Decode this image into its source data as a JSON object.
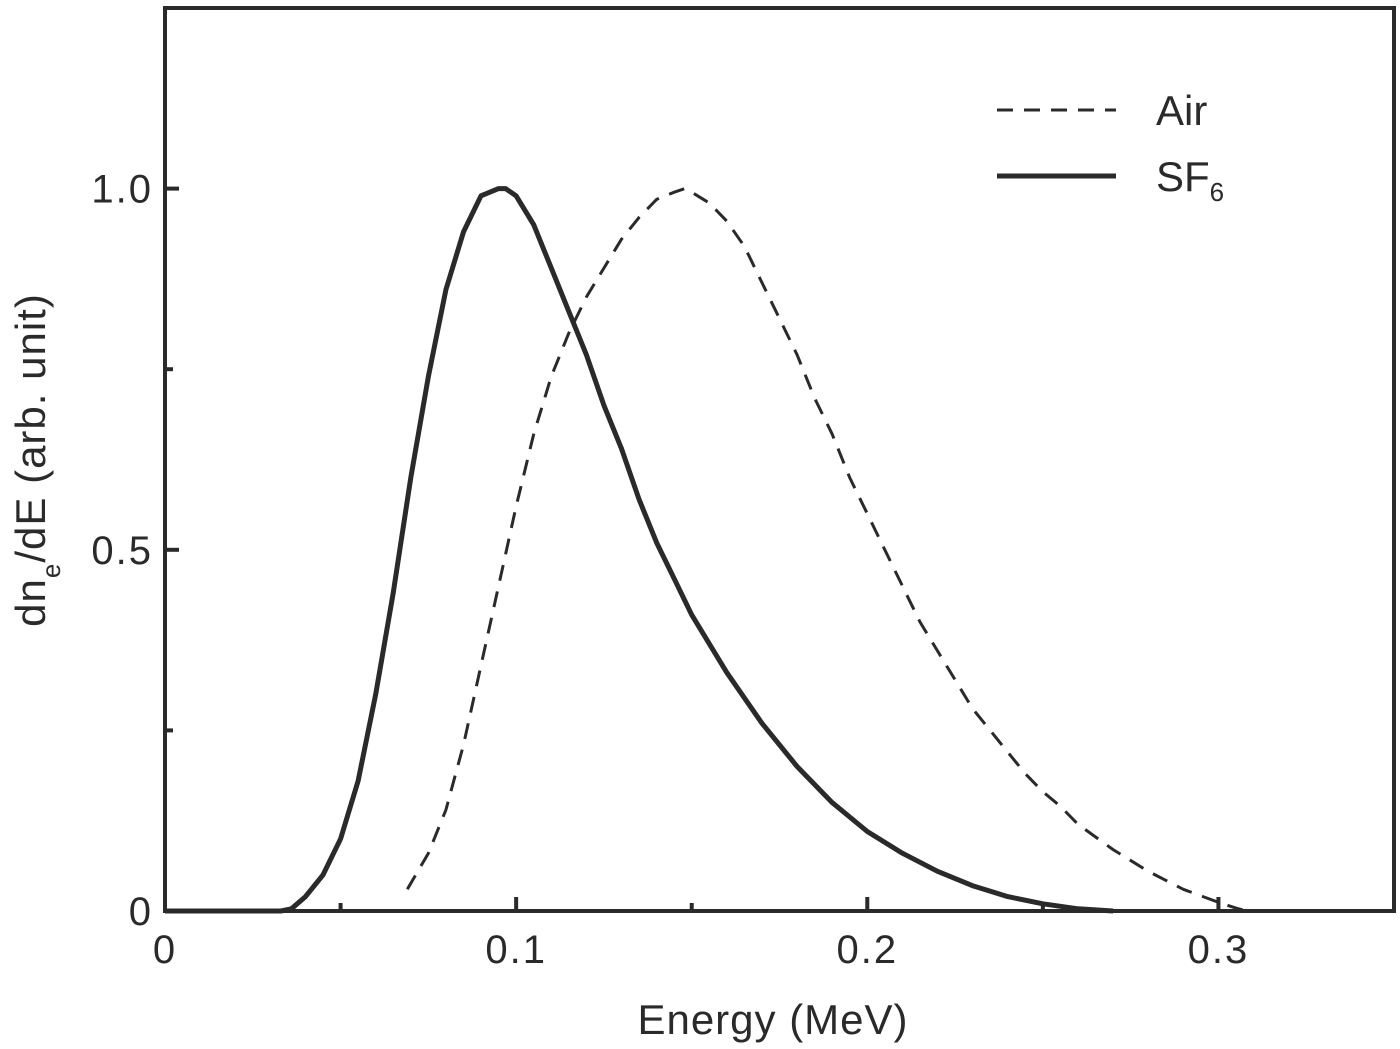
{
  "chart_data": {
    "type": "line",
    "title": "",
    "xlabel": "Energy (MeV)",
    "ylabel": {
      "parts": [
        {
          "text": "dn",
          "style": "normal"
        },
        {
          "text": "e",
          "style": "sub"
        },
        {
          "text": "/dE (arb. unit)",
          "style": "normal"
        }
      ]
    },
    "xlim": [
      0,
      0.35
    ],
    "ylim": [
      0,
      1.25
    ],
    "x_ticks": [
      {
        "value": 0,
        "label": "0"
      },
      {
        "value": 0.1,
        "label": "0.1"
      },
      {
        "value": 0.2,
        "label": "0.2"
      },
      {
        "value": 0.3,
        "label": "0.3"
      }
    ],
    "x_minor_ticks": [
      0.05,
      0.15,
      0.25
    ],
    "y_ticks": [
      {
        "value": 0,
        "label": "0"
      },
      {
        "value": 0.5,
        "label": "0.5"
      },
      {
        "value": 1.0,
        "label": "1.0"
      }
    ],
    "y_minor_ticks": [
      0.25,
      0.75
    ],
    "grid": false,
    "legend_position": "top-right",
    "series": [
      {
        "name": "Air",
        "line_style": "dashed",
        "color": "#2a2a2a",
        "x": [
          0.069,
          0.075,
          0.08,
          0.085,
          0.09,
          0.095,
          0.1,
          0.105,
          0.11,
          0.115,
          0.12,
          0.125,
          0.13,
          0.135,
          0.14,
          0.145,
          0.148,
          0.15,
          0.155,
          0.16,
          0.165,
          0.17,
          0.175,
          0.18,
          0.185,
          0.19,
          0.195,
          0.2,
          0.205,
          0.21,
          0.215,
          0.22,
          0.225,
          0.23,
          0.235,
          0.24,
          0.245,
          0.25,
          0.255,
          0.26,
          0.27,
          0.28,
          0.29,
          0.3,
          0.305,
          0.308
        ],
        "y": [
          0.03,
          0.08,
          0.14,
          0.23,
          0.34,
          0.45,
          0.56,
          0.66,
          0.74,
          0.8,
          0.85,
          0.89,
          0.93,
          0.96,
          0.985,
          0.995,
          1.0,
          0.995,
          0.98,
          0.955,
          0.92,
          0.87,
          0.82,
          0.77,
          0.71,
          0.66,
          0.6,
          0.55,
          0.5,
          0.45,
          0.4,
          0.36,
          0.32,
          0.28,
          0.25,
          0.22,
          0.19,
          0.165,
          0.145,
          0.12,
          0.085,
          0.055,
          0.03,
          0.012,
          0.004,
          0.0
        ]
      },
      {
        "name": "SF",
        "name_sub": "6",
        "line_style": "solid",
        "color": "#2a2a2a",
        "x": [
          0.0,
          0.033,
          0.036,
          0.04,
          0.045,
          0.05,
          0.055,
          0.06,
          0.065,
          0.07,
          0.075,
          0.08,
          0.085,
          0.09,
          0.095,
          0.097,
          0.1,
          0.105,
          0.11,
          0.115,
          0.12,
          0.125,
          0.13,
          0.135,
          0.14,
          0.145,
          0.15,
          0.16,
          0.17,
          0.18,
          0.19,
          0.2,
          0.21,
          0.22,
          0.23,
          0.24,
          0.25,
          0.26,
          0.27
        ],
        "y": [
          0.0,
          0.0,
          0.003,
          0.02,
          0.05,
          0.1,
          0.18,
          0.3,
          0.44,
          0.6,
          0.74,
          0.86,
          0.94,
          0.99,
          1.0,
          1.0,
          0.99,
          0.95,
          0.89,
          0.83,
          0.77,
          0.7,
          0.64,
          0.57,
          0.51,
          0.46,
          0.41,
          0.33,
          0.26,
          0.2,
          0.15,
          0.11,
          0.08,
          0.055,
          0.035,
          0.02,
          0.01,
          0.003,
          0.0
        ]
      }
    ]
  }
}
